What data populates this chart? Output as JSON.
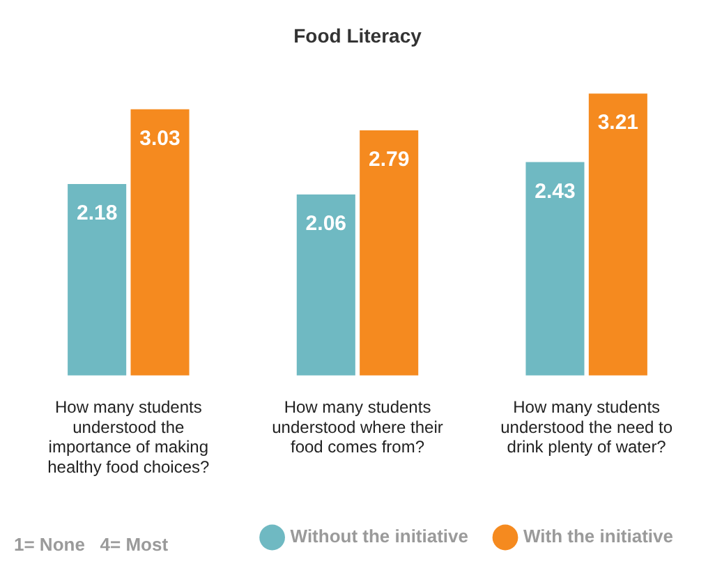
{
  "chart_data": {
    "type": "bar",
    "title": "Food Literacy",
    "categories": [
      "How many students understood the importance of making healthy food choices?",
      "How many students understood where their food comes from?",
      "How many students understood the need to drink plenty of water?"
    ],
    "series": [
      {
        "name": "Without the initiative",
        "color": "#6fb9c2",
        "values": [
          2.18,
          2.06,
          2.43
        ]
      },
      {
        "name": "With the initiative",
        "color": "#f58a1f",
        "values": [
          3.03,
          2.79,
          3.21
        ]
      }
    ],
    "data_labels": true,
    "grid": false,
    "legend": "bottom",
    "annotations": [
      "1= None   4= Most"
    ]
  }
}
